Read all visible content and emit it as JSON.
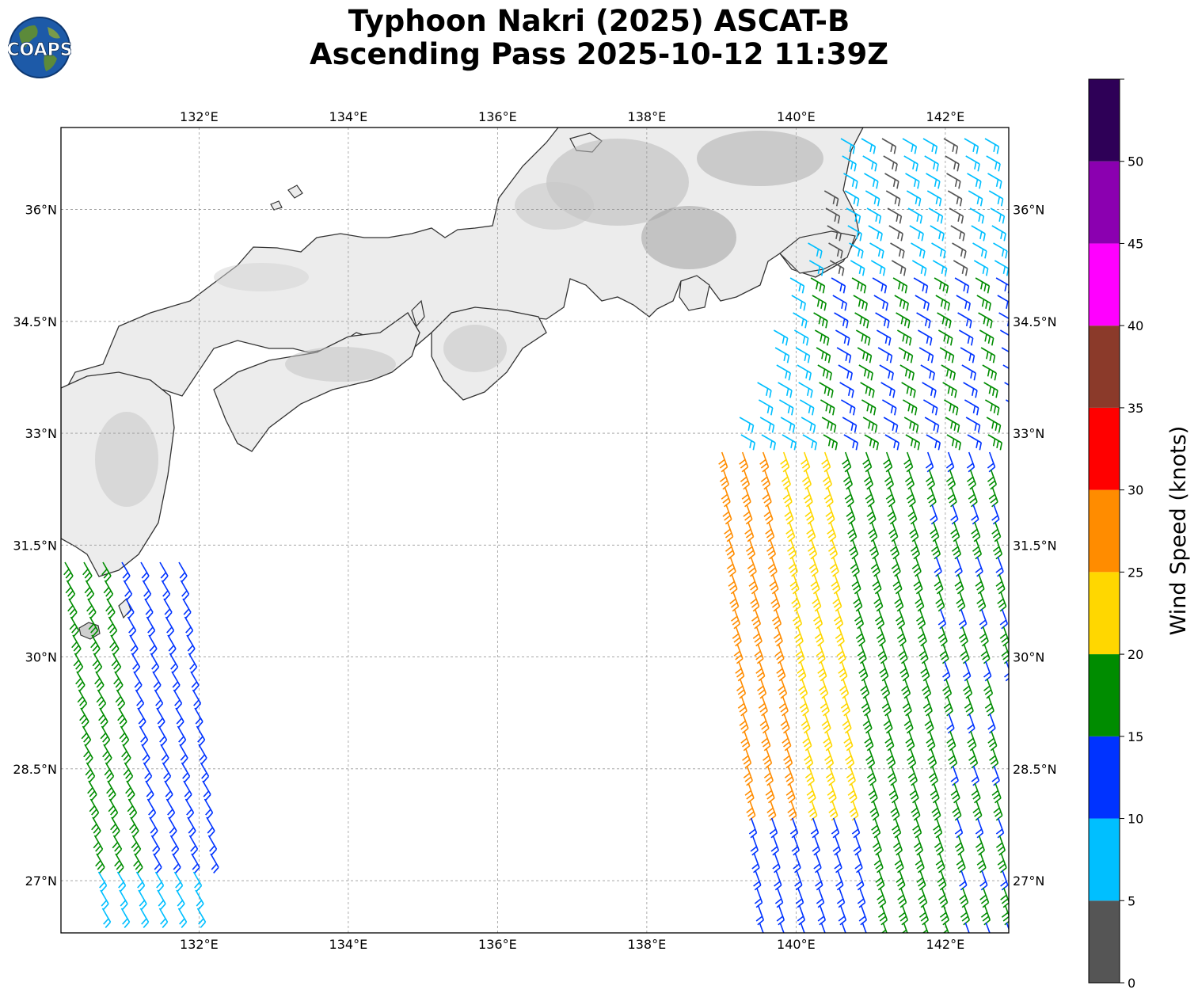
{
  "title": {
    "line1": "Typhoon Nakri (2025) ASCAT-B",
    "line2": "Ascending Pass 2025-10-12 11:39Z"
  },
  "logo": {
    "text": "COAPS",
    "icon": "globe-logo-icon"
  },
  "map": {
    "lon_range": [
      130.15,
      142.85
    ],
    "lat_range": [
      26.3,
      37.1
    ],
    "lon_ticks": [
      {
        "value": 132,
        "label": "132°E"
      },
      {
        "value": 134,
        "label": "134°E"
      },
      {
        "value": 136,
        "label": "136°E"
      },
      {
        "value": 138,
        "label": "138°E"
      },
      {
        "value": 140,
        "label": "140°E"
      },
      {
        "value": 142,
        "label": "142°E"
      }
    ],
    "lat_ticks": [
      {
        "value": 36,
        "label": "36°N"
      },
      {
        "value": 34.5,
        "label": "34.5°N"
      },
      {
        "value": 33,
        "label": "33°N"
      },
      {
        "value": 31.5,
        "label": "31.5°N"
      },
      {
        "value": 30,
        "label": "30°N"
      },
      {
        "value": 28.5,
        "label": "28.5°N"
      },
      {
        "value": 27,
        "label": "27°N"
      }
    ],
    "grid": true,
    "land_color": "#ececec",
    "coast_color": "#333333"
  },
  "colorbar": {
    "label": "Wind Speed (knots)",
    "bins": [
      {
        "min": 0,
        "max": 5,
        "color": "#555555"
      },
      {
        "min": 5,
        "max": 10,
        "color": "#00bfff"
      },
      {
        "min": 10,
        "max": 15,
        "color": "#0033ff"
      },
      {
        "min": 15,
        "max": 20,
        "color": "#008c00"
      },
      {
        "min": 20,
        "max": 25,
        "color": "#ffd700"
      },
      {
        "min": 25,
        "max": 30,
        "color": "#ff8c00"
      },
      {
        "min": 30,
        "max": 35,
        "color": "#ff0000"
      },
      {
        "min": 35,
        "max": 40,
        "color": "#8b3a2a"
      },
      {
        "min": 40,
        "max": 45,
        "color": "#ff00ff"
      },
      {
        "min": 45,
        "max": 50,
        "color": "#8b00b0"
      },
      {
        "min": 50,
        "max": 55,
        "color": "#2e0057"
      }
    ],
    "tick_labels": [
      "0",
      "5",
      "10",
      "15",
      "20",
      "25",
      "30",
      "35",
      "40",
      "45",
      "50"
    ]
  }
}
